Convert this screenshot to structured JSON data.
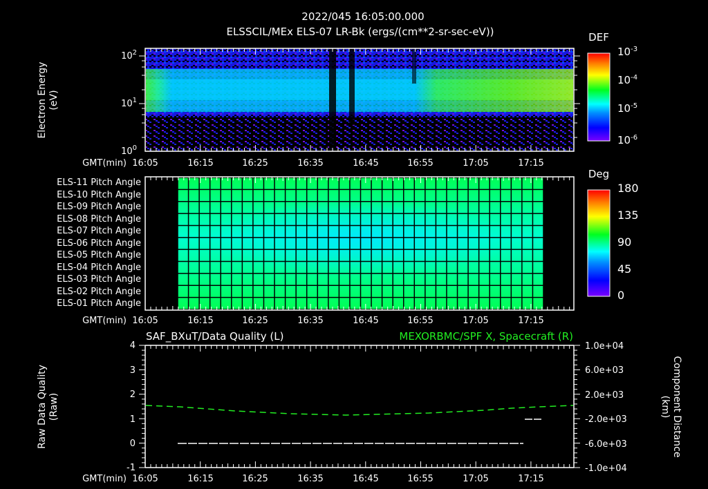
{
  "header": {
    "timestamp": "2022/045 16:05:00.000",
    "title": "ELSSCIL/MEx ELS-07 LR-Bk  (ergs/(cm**2-sr-sec-eV))"
  },
  "time_axis": {
    "label": "GMT(min)",
    "ticks": [
      "16:05",
      "16:15",
      "16:25",
      "16:35",
      "16:45",
      "16:55",
      "17:05",
      "17:15"
    ]
  },
  "panel1": {
    "ylabel_line1": "Electron Energy",
    "ylabel_line2": "(eV)",
    "yticks": [
      {
        "base": "10",
        "exp": "2"
      },
      {
        "base": "10",
        "exp": "1"
      },
      {
        "base": "10",
        "exp": "0"
      }
    ],
    "colorbar": {
      "title": "DEF",
      "ticks": [
        {
          "base": "10",
          "exp": "-3"
        },
        {
          "base": "10",
          "exp": "-4"
        },
        {
          "base": "10",
          "exp": "-5"
        },
        {
          "base": "10",
          "exp": "-6"
        }
      ]
    }
  },
  "panel2": {
    "rows": [
      "ELS-11 Pitch Angle",
      "ELS-10 Pitch Angle",
      "ELS-09 Pitch Angle",
      "ELS-08 Pitch Angle",
      "ELS-07 Pitch Angle",
      "ELS-06 Pitch Angle",
      "ELS-05 Pitch Angle",
      "ELS-04 Pitch Angle",
      "ELS-03 Pitch Angle",
      "ELS-02 Pitch Angle",
      "ELS-01 Pitch Angle"
    ],
    "colorbar": {
      "title": "Deg",
      "ticks": [
        "180",
        "135",
        "90",
        "45",
        "0"
      ]
    }
  },
  "panel3": {
    "left_title": "SAF_BXuT/Data Quality (L)",
    "right_title": "MEXORBMC/SPF X, Spacecraft (R)",
    "ylabel_left_line1": "Raw Data Quality",
    "ylabel_left_line2": "(Raw)",
    "ylabel_right_line1": "Component Distance",
    "ylabel_right_line2": "(km)",
    "left_ticks": [
      "4",
      "3",
      "2",
      "1",
      "0",
      "-1"
    ],
    "right_ticks": [
      "1.0e+04",
      "6.0e+03",
      "2.0e+03",
      "-2.0e+03",
      "-6.0e+03",
      "-1.0e+04"
    ]
  },
  "colors": {
    "background": "#000000",
    "axis": "#ffffff",
    "spacecraft_x_line": "#22ee22",
    "data_quality_line": "#ffffff"
  },
  "chart_data": [
    {
      "type": "heatmap",
      "title": "ELSSCIL/MEx ELS-07 LR-Bk (ergs/(cm**2-sr-sec-eV))",
      "xlabel": "GMT(min)",
      "ylabel": "Electron Energy (eV)",
      "x_range": [
        "16:05",
        "17:23"
      ],
      "y_scale": "log",
      "ylim": [
        1,
        150
      ],
      "colorbar": {
        "label": "DEF",
        "scale": "log",
        "range": [
          1e-06,
          0.001
        ]
      },
      "features": [
        {
          "time": "16:05-16:07",
          "energy_eV": "20-40",
          "level": "~1e-4 (green)"
        },
        {
          "time": "16:07-16:40",
          "energy_eV": "10-40",
          "level": "~1e-5 (cyan)"
        },
        {
          "time": "16:39-16:40",
          "note": "data gap (dark)"
        },
        {
          "time": "16:43-16:44",
          "note": "data gap (dark)"
        },
        {
          "time": "16:58-17:23",
          "energy_eV": "15-50",
          "level": "~1e-4 to 2e-4 (green-yellow)"
        }
      ]
    },
    {
      "type": "heatmap",
      "title": "Pitch Angle",
      "xlabel": "GMT(min)",
      "categories": [
        "ELS-11",
        "ELS-10",
        "ELS-09",
        "ELS-08",
        "ELS-07",
        "ELS-06",
        "ELS-05",
        "ELS-04",
        "ELS-03",
        "ELS-02",
        "ELS-01"
      ],
      "x_range": [
        "16:11",
        "17:17"
      ],
      "colorbar": {
        "label": "Deg",
        "range": [
          0,
          180
        ],
        "ticks": [
          0,
          45,
          90,
          135,
          180
        ]
      },
      "values_description": "Approx 95-105 deg at ELS-11 and ELS-01 edges; minimum ~70 deg around ELS-06/07 near 16:40-16:50"
    },
    {
      "type": "line",
      "xlabel": "GMT(min)",
      "ylabel_left": "Raw Data Quality (Raw)",
      "ylabel_right": "Component Distance (km)",
      "ylim_left": [
        -1,
        4
      ],
      "ylim_right": [
        -10000,
        10000
      ],
      "series": [
        {
          "name": "SAF_BXuT/Data Quality (L)",
          "axis": "left",
          "x": [
            "16:11",
            "17:13",
            "17:13",
            "17:15"
          ],
          "values": [
            0,
            0,
            1,
            1
          ]
        },
        {
          "name": "MEXORBMC/SPF X, Spacecraft (R)",
          "axis": "right",
          "x": [
            "16:05",
            "16:15",
            "16:25",
            "16:35",
            "16:45",
            "16:55",
            "17:05",
            "17:15",
            "17:23"
          ],
          "values": [
            200,
            -200,
            -600,
            -900,
            -900,
            -700,
            -300,
            100,
            300
          ]
        }
      ]
    }
  ]
}
